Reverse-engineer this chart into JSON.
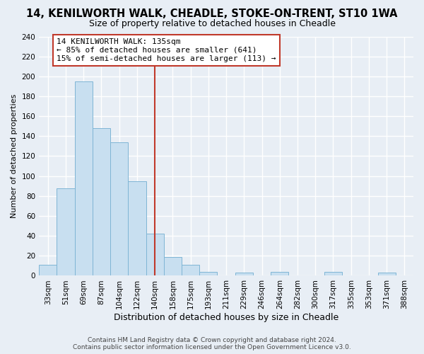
{
  "title": "14, KENILWORTH WALK, CHEADLE, STOKE-ON-TRENT, ST10 1WA",
  "subtitle": "Size of property relative to detached houses in Cheadle",
  "xlabel": "Distribution of detached houses by size in Cheadle",
  "ylabel": "Number of detached properties",
  "bar_labels": [
    "33sqm",
    "51sqm",
    "69sqm",
    "87sqm",
    "104sqm",
    "122sqm",
    "140sqm",
    "158sqm",
    "175sqm",
    "193sqm",
    "211sqm",
    "229sqm",
    "246sqm",
    "264sqm",
    "282sqm",
    "300sqm",
    "317sqm",
    "335sqm",
    "353sqm",
    "371sqm",
    "388sqm"
  ],
  "bar_heights": [
    11,
    88,
    195,
    148,
    134,
    95,
    42,
    19,
    11,
    4,
    0,
    3,
    0,
    4,
    0,
    0,
    4,
    0,
    0,
    3,
    0
  ],
  "bar_color": "#c8dff0",
  "bar_edge_color": "#7fb5d5",
  "vline_x": 6.0,
  "vline_color": "#c0392b",
  "ylim": [
    0,
    240
  ],
  "yticks": [
    0,
    20,
    40,
    60,
    80,
    100,
    120,
    140,
    160,
    180,
    200,
    220,
    240
  ],
  "annotation_title": "14 KENILWORTH WALK: 135sqm",
  "annotation_line1": "← 85% of detached houses are smaller (641)",
  "annotation_line2": "15% of semi-detached houses are larger (113) →",
  "footer1": "Contains HM Land Registry data © Crown copyright and database right 2024.",
  "footer2": "Contains public sector information licensed under the Open Government Licence v3.0.",
  "bg_color": "#e8eef5",
  "plot_bg_color": "#e8eef5",
  "grid_color": "#ffffff",
  "title_fontsize": 10.5,
  "subtitle_fontsize": 9,
  "ylabel_fontsize": 8,
  "xlabel_fontsize": 9,
  "tick_fontsize": 7.5
}
